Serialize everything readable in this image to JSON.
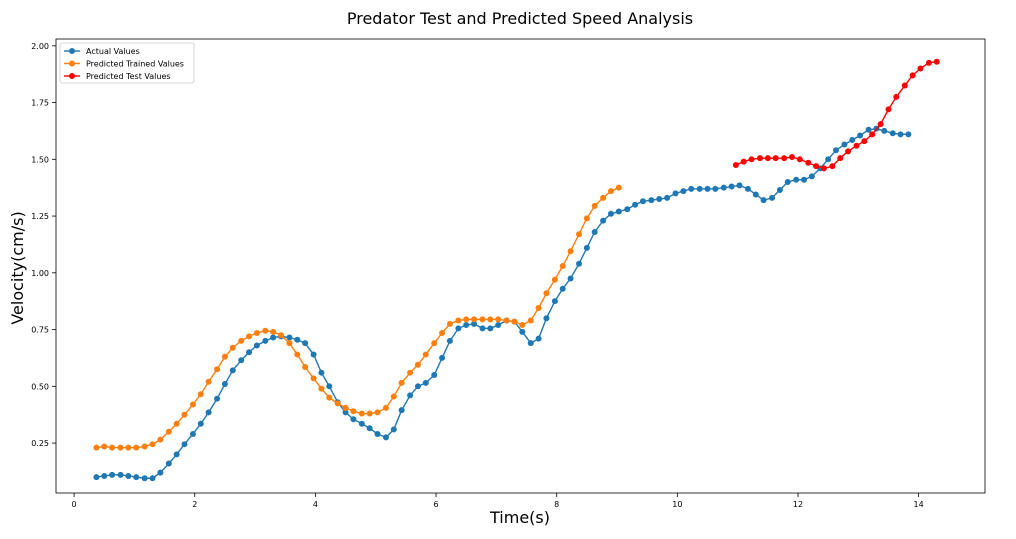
{
  "chart_data": {
    "type": "line",
    "title": "Predator Test and Predicted Speed Analysis",
    "xlabel": "Time(s)",
    "ylabel": "Velocity(cm/s)",
    "xlim": [
      -0.3,
      15.1
    ],
    "ylim": [
      0.03,
      2.03
    ],
    "xticks": [
      0,
      2,
      4,
      6,
      8,
      10,
      12,
      14
    ],
    "xtick_labels": [
      "0",
      "2",
      "4",
      "6",
      "8",
      "10",
      "12",
      "14"
    ],
    "yticks": [
      0.25,
      0.5,
      0.75,
      1.0,
      1.25,
      1.5,
      1.75,
      2.0
    ],
    "ytick_labels": [
      "0.25",
      "0.50",
      "0.75",
      "1.00",
      "1.25",
      "1.50",
      "1.75",
      "2.00"
    ],
    "grid": false,
    "legend_position": "top-left",
    "series": [
      {
        "name": "Actual Values",
        "color": "#1f77b4",
        "marker": "circle",
        "points": [
          [
            0.37,
            0.1
          ],
          [
            0.5,
            0.105
          ],
          [
            0.63,
            0.11
          ],
          [
            0.77,
            0.11
          ],
          [
            0.9,
            0.105
          ],
          [
            1.03,
            0.1
          ],
          [
            1.17,
            0.095
          ],
          [
            1.3,
            0.095
          ],
          [
            1.43,
            0.12
          ],
          [
            1.57,
            0.16
          ],
          [
            1.7,
            0.2
          ],
          [
            1.83,
            0.245
          ],
          [
            1.97,
            0.29
          ],
          [
            2.1,
            0.335
          ],
          [
            2.23,
            0.385
          ],
          [
            2.37,
            0.445
          ],
          [
            2.5,
            0.51
          ],
          [
            2.63,
            0.57
          ],
          [
            2.77,
            0.615
          ],
          [
            2.9,
            0.65
          ],
          [
            3.03,
            0.68
          ],
          [
            3.17,
            0.7
          ],
          [
            3.3,
            0.715
          ],
          [
            3.43,
            0.72
          ],
          [
            3.57,
            0.715
          ],
          [
            3.7,
            0.705
          ],
          [
            3.83,
            0.69
          ],
          [
            3.97,
            0.64
          ],
          [
            4.1,
            0.56
          ],
          [
            4.23,
            0.5
          ],
          [
            4.37,
            0.43
          ],
          [
            4.5,
            0.385
          ],
          [
            4.63,
            0.355
          ],
          [
            4.77,
            0.335
          ],
          [
            4.9,
            0.315
          ],
          [
            5.03,
            0.29
          ],
          [
            5.17,
            0.275
          ],
          [
            5.3,
            0.31
          ],
          [
            5.43,
            0.395
          ],
          [
            5.57,
            0.46
          ],
          [
            5.7,
            0.5
          ],
          [
            5.83,
            0.515
          ],
          [
            5.97,
            0.55
          ],
          [
            6.1,
            0.625
          ],
          [
            6.23,
            0.7
          ],
          [
            6.37,
            0.755
          ],
          [
            6.5,
            0.77
          ],
          [
            6.63,
            0.775
          ],
          [
            6.77,
            0.755
          ],
          [
            6.9,
            0.755
          ],
          [
            7.03,
            0.77
          ],
          [
            7.17,
            0.79
          ],
          [
            7.3,
            0.785
          ],
          [
            7.43,
            0.74
          ],
          [
            7.57,
            0.69
          ],
          [
            7.7,
            0.71
          ],
          [
            7.83,
            0.8
          ],
          [
            7.97,
            0.875
          ],
          [
            8.1,
            0.93
          ],
          [
            8.23,
            0.975
          ],
          [
            8.37,
            1.04
          ],
          [
            8.5,
            1.11
          ],
          [
            8.63,
            1.18
          ],
          [
            8.77,
            1.23
          ],
          [
            8.9,
            1.26
          ],
          [
            9.03,
            1.27
          ],
          [
            9.17,
            1.28
          ],
          [
            9.3,
            1.3
          ],
          [
            9.43,
            1.315
          ],
          [
            9.57,
            1.32
          ],
          [
            9.7,
            1.325
          ],
          [
            9.83,
            1.33
          ],
          [
            9.97,
            1.35
          ],
          [
            10.1,
            1.36
          ],
          [
            10.23,
            1.37
          ],
          [
            10.37,
            1.37
          ],
          [
            10.5,
            1.37
          ],
          [
            10.63,
            1.37
          ],
          [
            10.77,
            1.375
          ],
          [
            10.9,
            1.38
          ],
          [
            11.03,
            1.385
          ],
          [
            11.17,
            1.37
          ],
          [
            11.3,
            1.345
          ],
          [
            11.43,
            1.32
          ],
          [
            11.57,
            1.33
          ],
          [
            11.7,
            1.365
          ],
          [
            11.83,
            1.4
          ],
          [
            11.97,
            1.41
          ],
          [
            12.1,
            1.41
          ],
          [
            12.23,
            1.425
          ],
          [
            12.37,
            1.46
          ],
          [
            12.5,
            1.5
          ],
          [
            12.63,
            1.54
          ],
          [
            12.77,
            1.565
          ],
          [
            12.9,
            1.585
          ],
          [
            13.03,
            1.605
          ],
          [
            13.17,
            1.63
          ],
          [
            13.3,
            1.635
          ],
          [
            13.43,
            1.625
          ],
          [
            13.57,
            1.615
          ],
          [
            13.7,
            1.61
          ],
          [
            13.83,
            1.61
          ]
        ]
      },
      {
        "name": "Predicted Trained Values",
        "color": "#ff7f0e",
        "marker": "circle",
        "points": [
          [
            0.37,
            0.23
          ],
          [
            0.5,
            0.235
          ],
          [
            0.63,
            0.23
          ],
          [
            0.77,
            0.23
          ],
          [
            0.9,
            0.23
          ],
          [
            1.03,
            0.23
          ],
          [
            1.17,
            0.235
          ],
          [
            1.3,
            0.245
          ],
          [
            1.43,
            0.265
          ],
          [
            1.57,
            0.3
          ],
          [
            1.7,
            0.335
          ],
          [
            1.83,
            0.375
          ],
          [
            1.97,
            0.42
          ],
          [
            2.1,
            0.465
          ],
          [
            2.23,
            0.52
          ],
          [
            2.37,
            0.575
          ],
          [
            2.5,
            0.63
          ],
          [
            2.63,
            0.67
          ],
          [
            2.77,
            0.7
          ],
          [
            2.9,
            0.72
          ],
          [
            3.03,
            0.735
          ],
          [
            3.17,
            0.745
          ],
          [
            3.3,
            0.74
          ],
          [
            3.43,
            0.725
          ],
          [
            3.57,
            0.69
          ],
          [
            3.7,
            0.64
          ],
          [
            3.83,
            0.585
          ],
          [
            3.97,
            0.535
          ],
          [
            4.1,
            0.49
          ],
          [
            4.23,
            0.45
          ],
          [
            4.37,
            0.425
          ],
          [
            4.5,
            0.405
          ],
          [
            4.63,
            0.39
          ],
          [
            4.77,
            0.38
          ],
          [
            4.9,
            0.38
          ],
          [
            5.03,
            0.385
          ],
          [
            5.17,
            0.405
          ],
          [
            5.3,
            0.455
          ],
          [
            5.43,
            0.515
          ],
          [
            5.57,
            0.56
          ],
          [
            5.7,
            0.595
          ],
          [
            5.83,
            0.64
          ],
          [
            5.97,
            0.69
          ],
          [
            6.1,
            0.735
          ],
          [
            6.23,
            0.775
          ],
          [
            6.37,
            0.79
          ],
          [
            6.5,
            0.795
          ],
          [
            6.63,
            0.795
          ],
          [
            6.77,
            0.795
          ],
          [
            6.9,
            0.795
          ],
          [
            7.03,
            0.795
          ],
          [
            7.17,
            0.79
          ],
          [
            7.3,
            0.785
          ],
          [
            7.43,
            0.77
          ],
          [
            7.57,
            0.79
          ],
          [
            7.7,
            0.845
          ],
          [
            7.83,
            0.91
          ],
          [
            7.97,
            0.97
          ],
          [
            8.1,
            1.03
          ],
          [
            8.23,
            1.095
          ],
          [
            8.37,
            1.17
          ],
          [
            8.5,
            1.24
          ],
          [
            8.63,
            1.295
          ],
          [
            8.77,
            1.33
          ],
          [
            8.9,
            1.36
          ],
          [
            9.03,
            1.375
          ]
        ]
      },
      {
        "name": "Predicted Test Values",
        "color": "#ff0000",
        "marker": "circle",
        "points": [
          [
            10.97,
            1.475
          ],
          [
            11.1,
            1.49
          ],
          [
            11.23,
            1.5
          ],
          [
            11.37,
            1.505
          ],
          [
            11.5,
            1.505
          ],
          [
            11.63,
            1.505
          ],
          [
            11.77,
            1.505
          ],
          [
            11.9,
            1.51
          ],
          [
            12.03,
            1.5
          ],
          [
            12.17,
            1.485
          ],
          [
            12.3,
            1.47
          ],
          [
            12.43,
            1.46
          ],
          [
            12.57,
            1.47
          ],
          [
            12.7,
            1.505
          ],
          [
            12.83,
            1.535
          ],
          [
            12.97,
            1.56
          ],
          [
            13.1,
            1.58
          ],
          [
            13.23,
            1.61
          ],
          [
            13.37,
            1.655
          ],
          [
            13.5,
            1.72
          ],
          [
            13.63,
            1.775
          ],
          [
            13.77,
            1.825
          ],
          [
            13.9,
            1.87
          ],
          [
            14.03,
            1.9
          ],
          [
            14.17,
            1.925
          ],
          [
            14.3,
            1.93
          ]
        ]
      }
    ]
  }
}
